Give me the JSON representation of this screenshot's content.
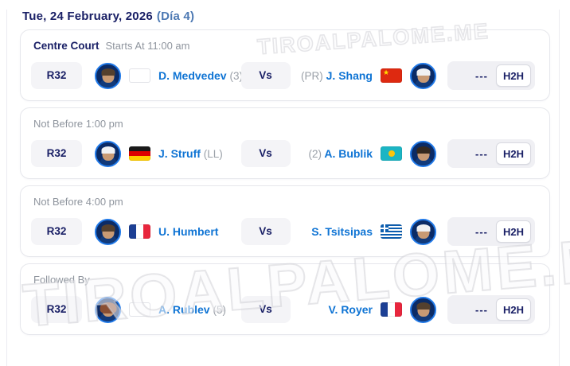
{
  "page": {
    "date_title": "Tue, 24 February, 2026",
    "day_label": "(Día 4)"
  },
  "watermark": {
    "text": "TIROALPALOME.ME"
  },
  "labels": {
    "vs": "Vs",
    "h2h": "H2H",
    "score_placeholder": "---"
  },
  "cards": [
    {
      "court": "Centre Court",
      "schedule": "Starts At 11:00 am",
      "round": "R32",
      "p1": {
        "pre": "",
        "name": "D. Medvedev",
        "suf": "(3)",
        "country": "neutral"
      },
      "p2": {
        "pre": "(PR)",
        "name": "J. Shang",
        "suf": "",
        "country": "china"
      }
    },
    {
      "court": "",
      "schedule": "Not Before 1:00 pm",
      "round": "R32",
      "p1": {
        "pre": "",
        "name": "J. Struff",
        "suf": "(LL)",
        "country": "germany"
      },
      "p2": {
        "pre": "(2)",
        "name": "A. Bublik",
        "suf": "",
        "country": "kazakhstan"
      }
    },
    {
      "court": "",
      "schedule": "Not Before 4:00 pm",
      "round": "R32",
      "p1": {
        "pre": "",
        "name": "U. Humbert",
        "suf": "",
        "country": "france"
      },
      "p2": {
        "pre": "",
        "name": "S. Tsitsipas",
        "suf": "",
        "country": "greece"
      }
    },
    {
      "court": "",
      "schedule": "Followed By",
      "round": "R32",
      "p1": {
        "pre": "",
        "name": "A. Rublev",
        "suf": "(5)",
        "country": "neutral"
      },
      "p2": {
        "pre": "",
        "name": "V. Royer",
        "suf": "",
        "country": "france"
      }
    }
  ]
}
